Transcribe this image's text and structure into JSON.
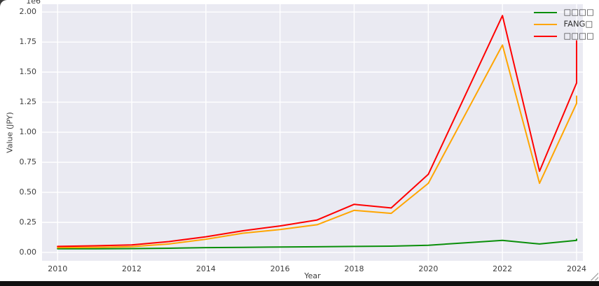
{
  "chart_data": {
    "type": "line",
    "title": "",
    "xlabel": "Year",
    "ylabel": "Value (JPY)",
    "offset_text": "1e6",
    "grid": true,
    "legend_position": "upper right",
    "plot_bg": "#eaeaf2",
    "grid_color": "#ffffff",
    "x": [
      2010,
      2011,
      2012,
      2013,
      2014,
      2015,
      2016,
      2017,
      2018,
      2019,
      2020,
      2021,
      2022,
      2023,
      2024
    ],
    "xlim": [
      2009.58,
      2024.17
    ],
    "ylim": [
      -0.07,
      2.065
    ],
    "xticks": [
      2010,
      2012,
      2014,
      2016,
      2018,
      2020,
      2022,
      2024
    ],
    "xtick_labels": [
      "2010",
      "2012",
      "2014",
      "2016",
      "2018",
      "2020",
      "2022",
      "2024"
    ],
    "yticks": [
      0.0,
      0.25,
      0.5,
      0.75,
      1.0,
      1.25,
      1.5,
      1.75,
      2.0
    ],
    "ytick_labels": [
      "0.00",
      "0.25",
      "0.50",
      "0.75",
      "1.00",
      "1.25",
      "1.50",
      "1.75",
      "2.00"
    ],
    "series": [
      {
        "name": "□□□□",
        "color": "#0a8f0a",
        "values": [
          0.03,
          0.03,
          0.032,
          0.035,
          0.04,
          0.042,
          0.045,
          0.047,
          0.05,
          0.052,
          0.06,
          0.08,
          0.1,
          0.07,
          0.1
        ],
        "final_tick": 0.11
      },
      {
        "name": "FANG□",
        "color": "#ffa500",
        "values": [
          0.04,
          0.042,
          0.048,
          0.07,
          0.11,
          0.16,
          0.19,
          0.23,
          0.35,
          0.325,
          0.575,
          1.15,
          1.725,
          0.575,
          1.24
        ],
        "final_tick": 1.3
      },
      {
        "name": "□□□□",
        "color": "#ff0000",
        "values": [
          0.05,
          0.055,
          0.062,
          0.09,
          0.13,
          0.18,
          0.22,
          0.27,
          0.4,
          0.37,
          0.65,
          1.31,
          1.97,
          0.675,
          1.41
        ],
        "final_tick": 1.76
      }
    ]
  }
}
